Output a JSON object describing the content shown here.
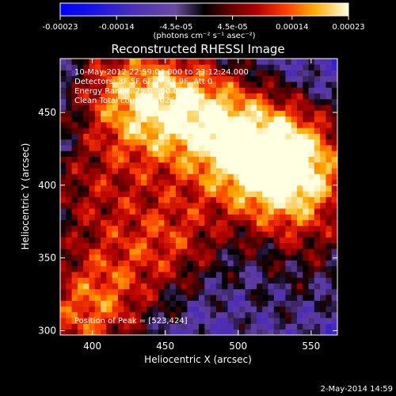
{
  "chart_data": {
    "type": "heatmap",
    "title": "Reconstructed RHESSI Image",
    "xlabel": "Heliocentric X (arcsec)",
    "ylabel": "Heliocentric Y (arcsec)",
    "xlim": [
      378,
      568
    ],
    "ylim": [
      297,
      487
    ],
    "x_ticks": [
      400,
      450,
      500,
      550
    ],
    "y_ticks": [
      300,
      350,
      400,
      450
    ],
    "grid": false,
    "colorbar": {
      "min": -0.00023,
      "max": 0.00023,
      "tick_values": [
        -0.00023,
        -0.00014,
        -4.5e-05,
        4.5e-05,
        0.00014,
        0.00023
      ],
      "tick_labels": [
        "-0.00023",
        "-0.00014",
        "-4.5e-05",
        "4.5e-05",
        "0.00014",
        "0.00023"
      ],
      "units": "(photons cm⁻² s⁻¹ asec⁻²)"
    },
    "info_lines": [
      "10-May-2012 22:59:04.000 to 23:12:24.000",
      "Detectors: 3F 5F 6F 7F 8F 9F, Att 0",
      "Energy Range: 25.0 - 50.0 keV",
      "Clean    Total counts: 2.02E+04"
    ],
    "peak_label": "Position of Peak = [523,424]",
    "peak_position": [
      523,
      424
    ],
    "sources": [
      {
        "x": 505,
        "y": 425,
        "amp": 0.00023
      },
      {
        "x": 470,
        "y": 455,
        "amp": 0.00019
      },
      {
        "x": 420,
        "y": 470,
        "amp": 0.00016
      },
      {
        "x": 545,
        "y": 420,
        "amp": 0.00017
      },
      {
        "x": 535,
        "y": 395,
        "amp": 0.00015
      },
      {
        "x": 455,
        "y": 365,
        "amp": 0.00016
      },
      {
        "x": 395,
        "y": 395,
        "amp": 0.00012
      },
      {
        "x": 410,
        "y": 330,
        "amp": 0.00012
      },
      {
        "x": 390,
        "y": 305,
        "amp": 0.00014
      },
      {
        "x": 435,
        "y": 440,
        "amp": 0.00011
      },
      {
        "x": 560,
        "y": 350,
        "amp": 6e-05
      },
      {
        "x": 520,
        "y": 310,
        "amp": 4e-05
      }
    ]
  },
  "footer": {
    "timestamp": "2-May-2014 14:59"
  }
}
